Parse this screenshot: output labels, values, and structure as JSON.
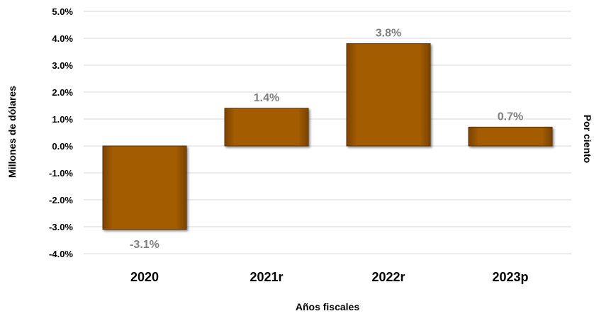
{
  "chart_data": {
    "type": "bar",
    "categories": [
      "2020",
      "2021r",
      "2022r",
      "2023p"
    ],
    "values": [
      -3.1,
      1.4,
      3.8,
      0.7
    ],
    "value_labels": [
      "-3.1%",
      "1.4%",
      "3.8%",
      "0.7%"
    ],
    "title": "",
    "xlabel": "Años fiscales",
    "ylabel": "Millones de dólares",
    "ylabel_right": "Por ciento",
    "ylim": [
      -4.0,
      5.0
    ],
    "yticks": [
      5.0,
      4.0,
      3.0,
      2.0,
      1.0,
      0.0,
      -1.0,
      -2.0,
      -3.0,
      -4.0
    ],
    "ytick_labels": [
      "5.0%",
      "4.0%",
      "3.0%",
      "2.0%",
      "1.0%",
      "0.0%",
      "-1.0%",
      "-2.0%",
      "-3.0%",
      "-4.0%"
    ],
    "grid": true,
    "legend": "none",
    "colors": {
      "bar_fill": "#a35c05",
      "bar_edge": "#5a3000",
      "data_label": "#7f7f7f",
      "gridline": "#d9d9d9"
    }
  }
}
